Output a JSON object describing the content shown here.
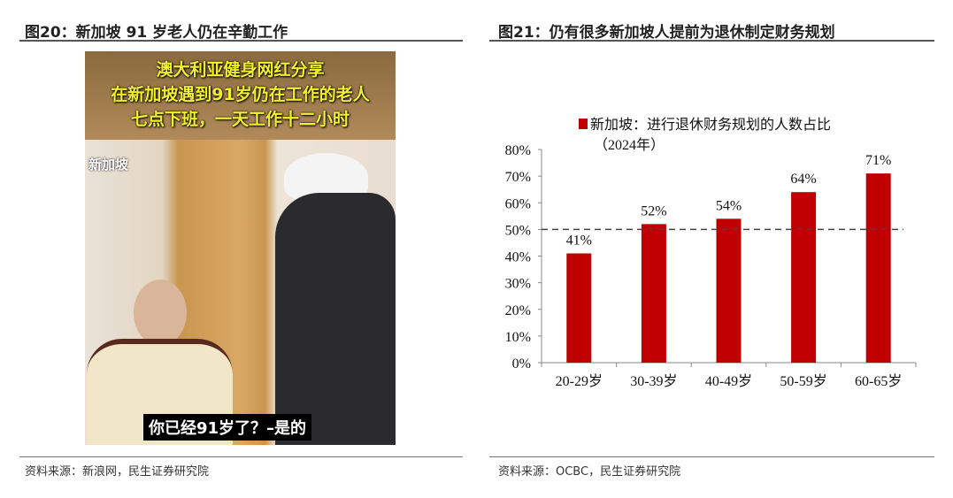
{
  "left": {
    "title": "图20：新加坡 91 岁老人仍在辛勤工作",
    "source": "资料来源：新浪网，民生证券研究院",
    "photo": {
      "caption_lines": [
        "澳大利亚健身网红分享",
        "在新加坡遇到91岁仍在工作的老人",
        "七点下班，一天工作十二小时"
      ],
      "location_tag": "新加坡",
      "subtitle": "你已经91岁了？–是的"
    }
  },
  "right": {
    "title": "图21：仍有很多新加坡人提前为退休制定财务规划",
    "source": "资料来源：OCBC，民生证券研究院"
  },
  "chart_data": {
    "type": "bar",
    "legend": [
      "新加坡：进行退休财务规划的人数占比",
      "（2024年）"
    ],
    "legend_placement": "top",
    "categories": [
      "20-29岁",
      "30-39岁",
      "40-49岁",
      "50-59岁",
      "60-65岁"
    ],
    "series": [
      {
        "name": "新加坡：进行退休财务规划的人数占比（2024年）",
        "values": [
          41,
          52,
          54,
          64,
          71
        ]
      }
    ],
    "data_labels": [
      "41%",
      "52%",
      "54%",
      "64%",
      "71%"
    ],
    "yticks": [
      "0%",
      "10%",
      "20%",
      "30%",
      "40%",
      "50%",
      "60%",
      "70%",
      "80%"
    ],
    "ylim": [
      0,
      80
    ],
    "reference_line": {
      "value": 50,
      "style": "dashed"
    },
    "grid": false,
    "bar_color": "#c00000"
  }
}
